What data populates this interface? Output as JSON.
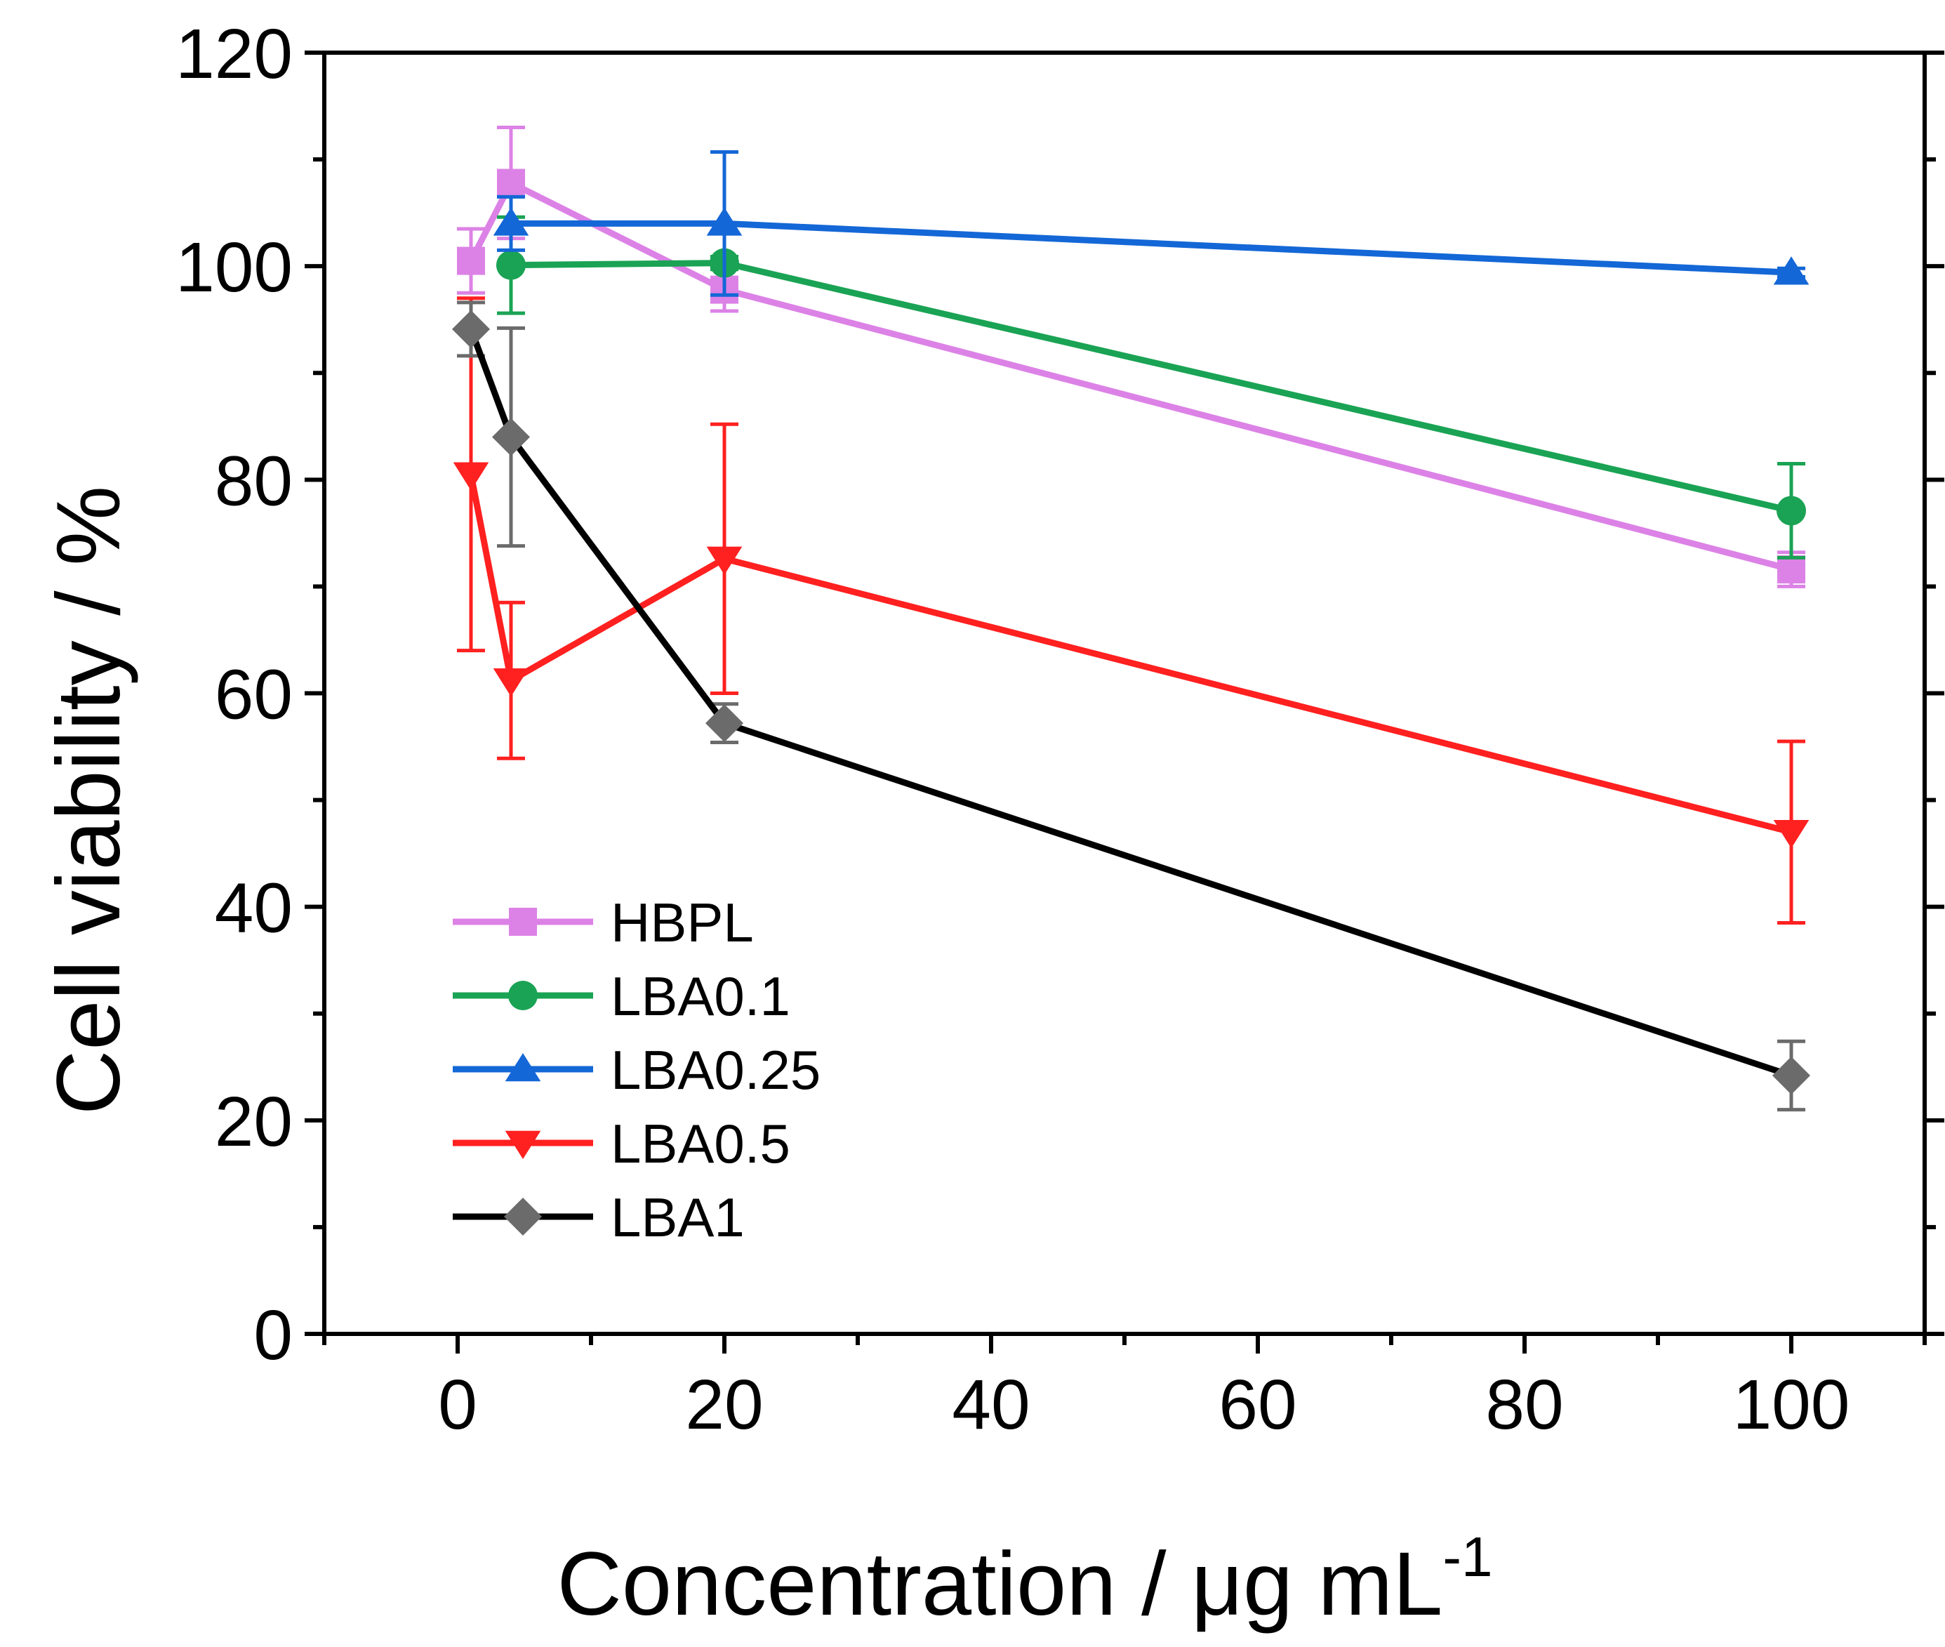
{
  "chart_data": {
    "type": "line",
    "xlabel": "Concentration / μg mL",
    "xlabel_superscript": "-1",
    "ylabel": "Cell viability / %",
    "xlim": [
      -10,
      110
    ],
    "ylim": [
      0,
      120
    ],
    "xticks": [
      0,
      20,
      40,
      60,
      80,
      100
    ],
    "xtick_labels": [
      "0",
      "20",
      "40",
      "60",
      "80",
      "100"
    ],
    "yticks": [
      0,
      20,
      40,
      60,
      80,
      100,
      120
    ],
    "ytick_labels": [
      "0",
      "20",
      "40",
      "60",
      "80",
      "100",
      "120"
    ],
    "x": [
      1,
      4,
      20,
      100
    ],
    "legend_position": "lower-left",
    "series": [
      {
        "name": "HBPL",
        "line_color": "#dc82e6",
        "marker": "square",
        "marker_color": "#dc82e6",
        "values": [
          100.5,
          107.8,
          97.8,
          71.6
        ],
        "errors": [
          3.0,
          5.2,
          2.0,
          1.6
        ]
      },
      {
        "name": "LBA0.1",
        "line_color": "#1aa354",
        "marker": "circle",
        "marker_color": "#1aa354",
        "values": null,
        "values_by_x": [
          null,
          100.1,
          100.3,
          77.1
        ],
        "errors": [
          null,
          4.5,
          0.6,
          4.4
        ]
      },
      {
        "name": "LBA0.25",
        "line_color": "#1467d6",
        "marker": "triangle-up",
        "marker_color": "#1467d6",
        "values_by_x": [
          null,
          104.0,
          104.0,
          99.4
        ],
        "errors": [
          null,
          2.5,
          6.7,
          0.4
        ]
      },
      {
        "name": "LBA0.5",
        "line_color": "#ff2020",
        "marker": "triangle-down",
        "marker_color": "#ff2020",
        "values_by_x": [
          80.5,
          61.2,
          72.6,
          47.0
        ],
        "errors": [
          16.5,
          7.3,
          12.6,
          8.5
        ]
      },
      {
        "name": "LBA1",
        "line_color": "#000000",
        "marker": "diamond",
        "marker_color": "#6b6b6b",
        "values_by_x": [
          94.1,
          84.0,
          57.2,
          24.2
        ],
        "errors": [
          2.5,
          10.2,
          1.8,
          3.2
        ]
      }
    ]
  }
}
